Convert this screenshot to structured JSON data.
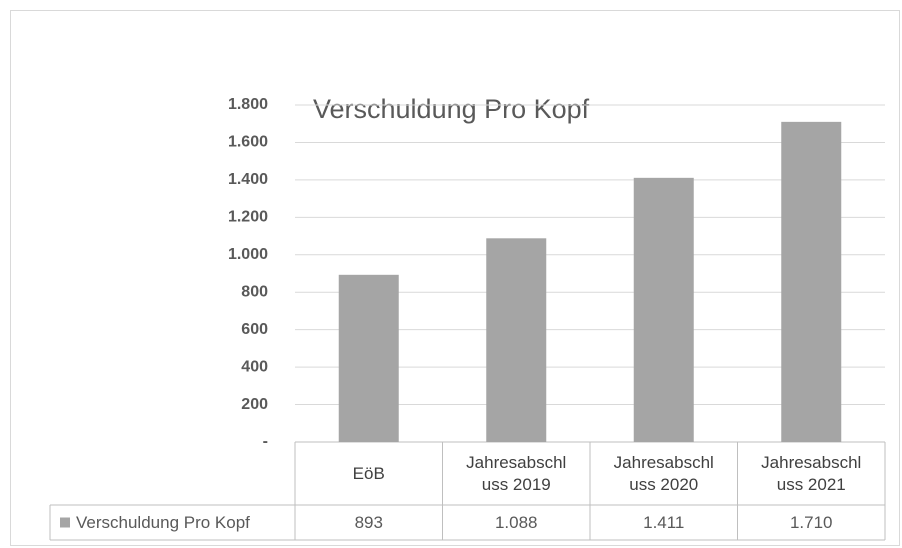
{
  "chart_data": {
    "type": "bar",
    "title": "Verschuldung Pro Kopf",
    "categories": [
      "EöB",
      "Jahresabschluss 2019",
      "Jahresabschluss 2020",
      "Jahresabschluss 2021"
    ],
    "series": [
      {
        "name": "Verschuldung Pro Kopf",
        "color": "#a5a5a5",
        "values": [
          893,
          1088,
          1411,
          1710
        ],
        "value_labels": [
          "893",
          "1.088",
          "1.411",
          "1.710"
        ]
      }
    ],
    "ylim": [
      0,
      1800
    ],
    "yticks": [
      {
        "value": 0,
        "label": "-"
      },
      200,
      400,
      600,
      800,
      {
        "value": 1000,
        "label": "1.000"
      },
      {
        "value": 1200,
        "label": "1.200"
      },
      {
        "value": 1400,
        "label": "1.400"
      },
      {
        "value": 1600,
        "label": "1.600"
      },
      {
        "value": 1800,
        "label": "1.800"
      }
    ],
    "grid": true
  }
}
